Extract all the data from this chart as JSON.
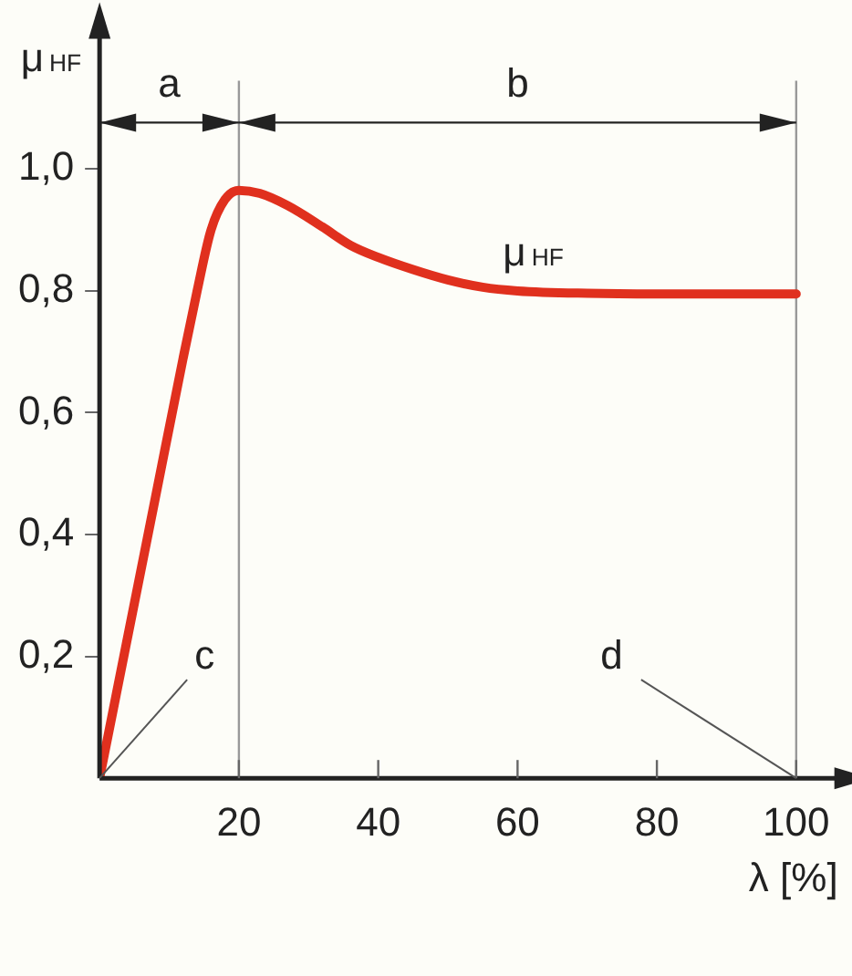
{
  "chart_data": {
    "type": "line",
    "xlabel": "λ [%]",
    "ylabel": "μ$_{HF}$",
    "series": [
      {
        "name": "μ$_{HF}$",
        "color": "#e0301e",
        "x": [
          0,
          4,
          8,
          12,
          14,
          16,
          18,
          20,
          23,
          27,
          32,
          36,
          40,
          45,
          50,
          55,
          60,
          70,
          80,
          90,
          100
        ],
        "values": [
          0,
          0.23,
          0.46,
          0.69,
          0.8,
          0.9,
          0.95,
          0.965,
          0.96,
          0.94,
          0.905,
          0.875,
          0.855,
          0.835,
          0.818,
          0.806,
          0.8,
          0.796,
          0.795,
          0.795,
          0.795
        ]
      }
    ],
    "xlim": [
      0,
      106
    ],
    "xticks": [
      20,
      40,
      60,
      80,
      100
    ],
    "ylim": [
      0,
      1.22
    ],
    "yticks": [
      {
        "value": 0.2,
        "label": "0,2"
      },
      {
        "value": 0.4,
        "label": "0,4"
      },
      {
        "value": 0.6,
        "label": "0,6"
      },
      {
        "value": 0.8,
        "label": "0,8"
      },
      {
        "value": 1.0,
        "label": "1,0"
      }
    ],
    "ref_lines": [
      {
        "axis": "x",
        "value": 20,
        "color": "#999999"
      },
      {
        "axis": "x",
        "value": 100,
        "color": "#999999"
      }
    ],
    "annotations": [
      "a",
      "b",
      {
        "text": "c",
        "x": 0,
        "y": 0
      },
      {
        "text": "d",
        "x": 100,
        "y": 0
      }
    ],
    "grid": false,
    "legend": false,
    "marker": "none",
    "line_style": "solid"
  }
}
